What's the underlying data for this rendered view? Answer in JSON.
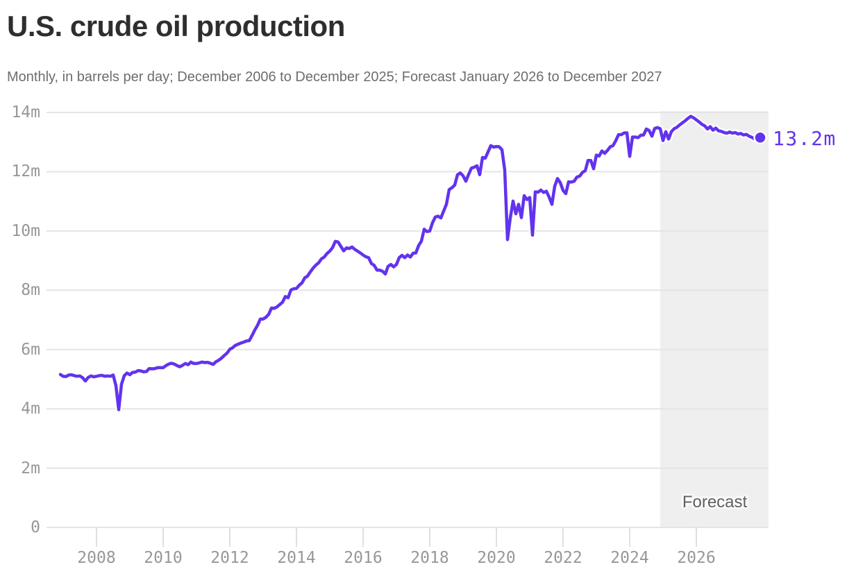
{
  "header": {
    "title": "U.S. crude oil production",
    "subtitle": "Monthly, in barrels per day; December 2006 to December 2025; Forecast January 2026 to December 2027"
  },
  "chart_data": {
    "type": "line",
    "title": "U.S. crude oil production",
    "subtitle": "Monthly, in barrels per day; December 2006 to December 2025; Forecast January 2026 to December 2027",
    "unit": "million barrels per day",
    "x_start": "2006-12",
    "x_end": "2027-12",
    "ylim": [
      0,
      14
    ],
    "grid": "horizontal",
    "legend_position": "none",
    "line_color": "#6233ee",
    "gridline_color": "#e4e4e4",
    "tick_color": "#e0e0e0",
    "axis_label_color": "#979797",
    "forecast_band": {
      "label": "Forecast",
      "color": "#efefef"
    },
    "end_label": "13.2m",
    "y_ticks": [
      {
        "label": "14m",
        "value": 14
      },
      {
        "label": "12m",
        "value": 12
      },
      {
        "label": "10m",
        "value": 10
      },
      {
        "label": "8m",
        "value": 8
      },
      {
        "label": "6m",
        "value": 6
      },
      {
        "label": "4m",
        "value": 4
      },
      {
        "label": "2m",
        "value": 2
      },
      {
        "label": "0",
        "value": 0
      }
    ],
    "x_ticks": [
      {
        "label": "2008",
        "year": 2008
      },
      {
        "label": "2010",
        "year": 2010
      },
      {
        "label": "2012",
        "year": 2012
      },
      {
        "label": "2014",
        "year": 2014
      },
      {
        "label": "2016",
        "year": 2016
      },
      {
        "label": "2018",
        "year": 2018
      },
      {
        "label": "2020",
        "year": 2020
      },
      {
        "label": "2022",
        "year": 2022
      },
      {
        "label": "2024",
        "year": 2024
      },
      {
        "label": "2026",
        "year": 2026
      }
    ],
    "series": [
      {
        "name": "U.S. crude oil production (million barrels per day)",
        "start": "2006-12",
        "values_by_year": {
          "2006": [
            5.16
          ],
          "2007": [
            5.1,
            5.09,
            5.14,
            5.15,
            5.12,
            5.1,
            5.11,
            5.05,
            4.94,
            5.06,
            5.11,
            5.08
          ],
          "2008": [
            5.1,
            5.12,
            5.13,
            5.1,
            5.11,
            5.1,
            5.14,
            4.78,
            3.97,
            4.83,
            5.12,
            5.21
          ],
          "2009": [
            5.15,
            5.23,
            5.24,
            5.29,
            5.28,
            5.25,
            5.26,
            5.36,
            5.35,
            5.36,
            5.39,
            5.39
          ],
          "2010": [
            5.39,
            5.46,
            5.51,
            5.54,
            5.51,
            5.46,
            5.42,
            5.47,
            5.53,
            5.49,
            5.58,
            5.53
          ],
          "2011": [
            5.53,
            5.55,
            5.58,
            5.56,
            5.57,
            5.54,
            5.5,
            5.59,
            5.64,
            5.71,
            5.8,
            5.88
          ],
          "2012": [
            6.01,
            6.06,
            6.14,
            6.18,
            6.22,
            6.25,
            6.29,
            6.3,
            6.47,
            6.66,
            6.82,
            7.03
          ],
          "2013": [
            7.03,
            7.09,
            7.19,
            7.4,
            7.39,
            7.44,
            7.52,
            7.6,
            7.79,
            7.75,
            8.01,
            8.05
          ],
          "2014": [
            8.06,
            8.17,
            8.25,
            8.42,
            8.48,
            8.62,
            8.75,
            8.85,
            8.93,
            9.06,
            9.12,
            9.24
          ],
          "2015": [
            9.32,
            9.44,
            9.65,
            9.63,
            9.48,
            9.33,
            9.43,
            9.41,
            9.46,
            9.38,
            9.32,
            9.26
          ],
          "2016": [
            9.19,
            9.13,
            9.1,
            8.9,
            8.84,
            8.68,
            8.68,
            8.64,
            8.55,
            8.81,
            8.87,
            8.79
          ],
          "2017": [
            8.87,
            9.1,
            9.18,
            9.1,
            9.19,
            9.12,
            9.25,
            9.26,
            9.51,
            9.66,
            10.06,
            9.98
          ],
          "2018": [
            10.0,
            10.28,
            10.47,
            10.5,
            10.44,
            10.67,
            10.9,
            11.4,
            11.46,
            11.55,
            11.9,
            11.96
          ],
          "2019": [
            11.86,
            11.68,
            11.91,
            12.12,
            12.15,
            12.2,
            11.9,
            12.48,
            12.46,
            12.67,
            12.88,
            12.83
          ],
          "2020": [
            12.85,
            12.84,
            12.74,
            12.06,
            9.71,
            10.44,
            11.01,
            10.58,
            10.9,
            10.45,
            11.19,
            11.06
          ],
          "2021": [
            11.13,
            9.86,
            11.32,
            11.31,
            11.38,
            11.3,
            11.34,
            11.14,
            10.9,
            11.51,
            11.77,
            11.63
          ],
          "2022": [
            11.37,
            11.26,
            11.66,
            11.65,
            11.68,
            11.82,
            11.85,
            11.98,
            12.03,
            12.38,
            12.38,
            12.1
          ],
          "2023": [
            12.56,
            12.53,
            12.7,
            12.62,
            12.72,
            12.84,
            12.88,
            13.05,
            13.25,
            13.25,
            13.31,
            13.31
          ],
          "2024": [
            12.52,
            13.17,
            13.17,
            13.15,
            13.23,
            13.24,
            13.44,
            13.39,
            13.2,
            13.46,
            13.49,
            13.45
          ],
          "2025": [
            13.05,
            13.35,
            13.1,
            13.35,
            13.45,
            13.5,
            13.58,
            13.65,
            13.72,
            13.8,
            13.87,
            13.82
          ],
          "2026": [
            13.75,
            13.68,
            13.6,
            13.55,
            13.44,
            13.52,
            13.4,
            13.47,
            13.38,
            13.36,
            13.32,
            13.3
          ],
          "2027": [
            13.34,
            13.3,
            13.32,
            13.27,
            13.29,
            13.24,
            13.26,
            13.2,
            13.16,
            13.1,
            13.06,
            13.15
          ]
        }
      }
    ]
  }
}
